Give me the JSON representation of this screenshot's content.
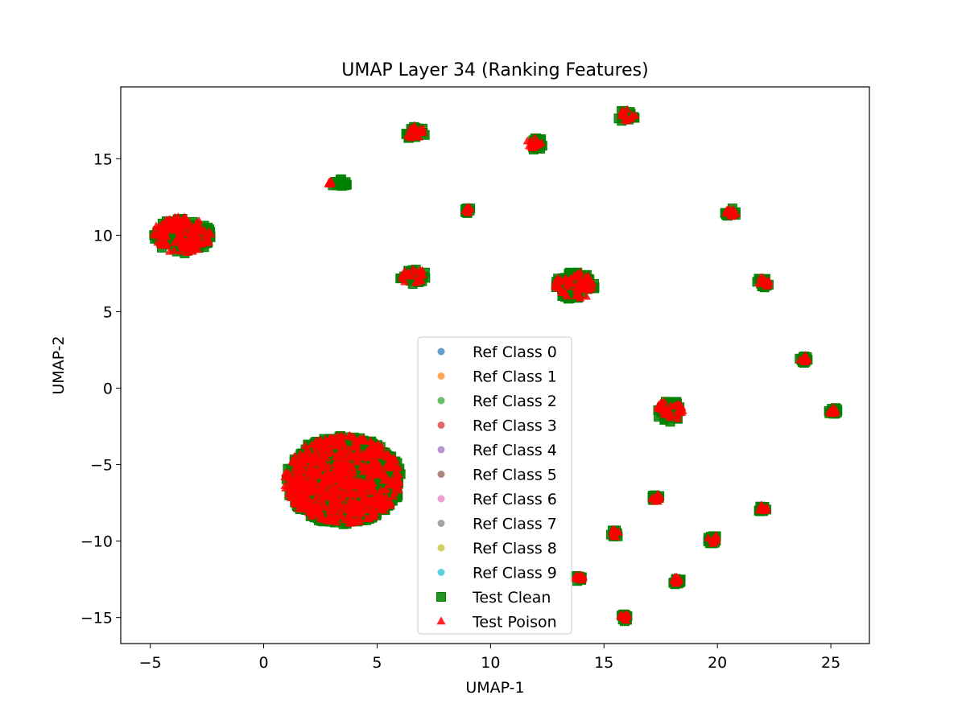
{
  "chart_data": {
    "type": "scatter",
    "title": "UMAP Layer 34 (Ranking Features)",
    "xlabel": "UMAP-1",
    "ylabel": "UMAP-2",
    "xlim": [
      -6.3,
      26.7
    ],
    "ylim": [
      -16.7,
      19.7
    ],
    "xticks": [
      -5,
      0,
      5,
      10,
      15,
      20,
      25
    ],
    "yticks": [
      -15,
      -10,
      -5,
      0,
      5,
      10,
      15
    ],
    "xtick_labels": [
      "−5",
      "0",
      "5",
      "10",
      "15",
      "20",
      "25"
    ],
    "ytick_labels": [
      "−15",
      "−10",
      "−5",
      "0",
      "5",
      "10",
      "15"
    ],
    "legend": {
      "placement": "lower center",
      "entries": [
        {
          "label": "Ref Class 0",
          "marker": "circle",
          "color": "#1f77b4"
        },
        {
          "label": "Ref Class 1",
          "marker": "circle",
          "color": "#ff7f0e"
        },
        {
          "label": "Ref Class 2",
          "marker": "circle",
          "color": "#2ca02c"
        },
        {
          "label": "Ref Class 3",
          "marker": "circle",
          "color": "#d62728"
        },
        {
          "label": "Ref Class 4",
          "marker": "circle",
          "color": "#9467bd"
        },
        {
          "label": "Ref Class 5",
          "marker": "circle",
          "color": "#8c564b"
        },
        {
          "label": "Ref Class 6",
          "marker": "circle",
          "color": "#e377c2"
        },
        {
          "label": "Ref Class 7",
          "marker": "circle",
          "color": "#7f7f7f"
        },
        {
          "label": "Ref Class 8",
          "marker": "circle",
          "color": "#bcbd22"
        },
        {
          "label": "Ref Class 9",
          "marker": "circle",
          "color": "#17becf"
        },
        {
          "label": "Test Clean",
          "marker": "square",
          "color": "#008000"
        },
        {
          "label": "Test Poison",
          "marker": "triangle",
          "color": "#ff0000"
        }
      ]
    },
    "series": [
      {
        "name": "Test Clean",
        "marker": "square",
        "color": "#008000",
        "clusters": [
          {
            "cx": -3.6,
            "cy": 10.0,
            "rx": 1.3,
            "ry": 1.2
          },
          {
            "cx": 3.5,
            "cy": -6.0,
            "rx": 2.6,
            "ry": 2.9
          },
          {
            "cx": 6.7,
            "cy": 16.7,
            "rx": 0.45,
            "ry": 0.5
          },
          {
            "cx": 12.0,
            "cy": 16.0,
            "rx": 0.4,
            "ry": 0.45
          },
          {
            "cx": 16.0,
            "cy": 17.8,
            "rx": 0.4,
            "ry": 0.4
          },
          {
            "cx": 3.3,
            "cy": 13.4,
            "rx": 0.45,
            "ry": 0.3
          },
          {
            "cx": 9.0,
            "cy": 11.6,
            "rx": 0.15,
            "ry": 0.25
          },
          {
            "cx": 20.6,
            "cy": 11.5,
            "rx": 0.3,
            "ry": 0.3
          },
          {
            "cx": 6.6,
            "cy": 7.3,
            "rx": 0.6,
            "ry": 0.5
          },
          {
            "cx": 13.7,
            "cy": 6.7,
            "rx": 0.9,
            "ry": 0.9
          },
          {
            "cx": 22.0,
            "cy": 6.9,
            "rx": 0.35,
            "ry": 0.35
          },
          {
            "cx": 23.8,
            "cy": 1.9,
            "rx": 0.2,
            "ry": 0.25
          },
          {
            "cx": 17.9,
            "cy": -1.5,
            "rx": 0.6,
            "ry": 0.7
          },
          {
            "cx": 25.1,
            "cy": -1.5,
            "rx": 0.2,
            "ry": 0.25
          },
          {
            "cx": 17.3,
            "cy": -7.2,
            "rx": 0.2,
            "ry": 0.25
          },
          {
            "cx": 22.0,
            "cy": -7.9,
            "rx": 0.2,
            "ry": 0.25
          },
          {
            "cx": 15.5,
            "cy": -9.5,
            "rx": 0.2,
            "ry": 0.25
          },
          {
            "cx": 19.8,
            "cy": -9.9,
            "rx": 0.25,
            "ry": 0.3
          },
          {
            "cx": 13.9,
            "cy": -12.4,
            "rx": 0.2,
            "ry": 0.25
          },
          {
            "cx": 18.2,
            "cy": -12.6,
            "rx": 0.2,
            "ry": 0.25
          },
          {
            "cx": 15.9,
            "cy": -15.0,
            "rx": 0.2,
            "ry": 0.25
          }
        ]
      },
      {
        "name": "Test Poison",
        "marker": "triangle",
        "color": "#ff0000",
        "clusters": [
          {
            "cx": -3.6,
            "cy": 10.0,
            "rx": 1.3,
            "ry": 1.2
          },
          {
            "cx": 3.5,
            "cy": -6.0,
            "rx": 2.6,
            "ry": 2.9
          },
          {
            "cx": 6.7,
            "cy": 16.7,
            "rx": 0.45,
            "ry": 0.5
          },
          {
            "cx": 12.0,
            "cy": 16.0,
            "rx": 0.4,
            "ry": 0.45
          },
          {
            "cx": 16.0,
            "cy": 17.8,
            "rx": 0.4,
            "ry": 0.4
          },
          {
            "cx": 2.9,
            "cy": 13.4,
            "rx": 0.1,
            "ry": 0.1
          },
          {
            "cx": 9.0,
            "cy": 11.6,
            "rx": 0.15,
            "ry": 0.25
          },
          {
            "cx": 20.6,
            "cy": 11.5,
            "rx": 0.3,
            "ry": 0.3
          },
          {
            "cx": 6.6,
            "cy": 7.3,
            "rx": 0.6,
            "ry": 0.5
          },
          {
            "cx": 13.7,
            "cy": 6.7,
            "rx": 0.9,
            "ry": 0.9
          },
          {
            "cx": 22.0,
            "cy": 6.9,
            "rx": 0.35,
            "ry": 0.35
          },
          {
            "cx": 23.8,
            "cy": 1.9,
            "rx": 0.2,
            "ry": 0.25
          },
          {
            "cx": 17.9,
            "cy": -1.5,
            "rx": 0.6,
            "ry": 0.7
          },
          {
            "cx": 25.1,
            "cy": -1.5,
            "rx": 0.2,
            "ry": 0.25
          },
          {
            "cx": 17.3,
            "cy": -7.2,
            "rx": 0.2,
            "ry": 0.25
          },
          {
            "cx": 22.0,
            "cy": -7.9,
            "rx": 0.2,
            "ry": 0.25
          },
          {
            "cx": 15.5,
            "cy": -9.5,
            "rx": 0.2,
            "ry": 0.25
          },
          {
            "cx": 19.8,
            "cy": -9.9,
            "rx": 0.25,
            "ry": 0.3
          },
          {
            "cx": 13.9,
            "cy": -12.4,
            "rx": 0.2,
            "ry": 0.25
          },
          {
            "cx": 18.2,
            "cy": -12.6,
            "rx": 0.2,
            "ry": 0.25
          },
          {
            "cx": 15.9,
            "cy": -15.0,
            "rx": 0.2,
            "ry": 0.25
          }
        ]
      }
    ]
  }
}
